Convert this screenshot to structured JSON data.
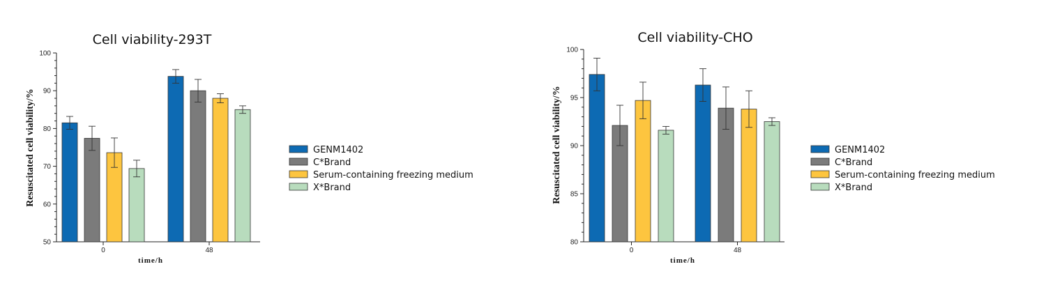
{
  "chart_data": [
    {
      "type": "bar",
      "title": "Cell viability-293T",
      "xlabel": "time/h",
      "ylabel": "Resuscitated cell viability/%",
      "categories": [
        "0",
        "48"
      ],
      "ylim": [
        50,
        100
      ],
      "yticks": [
        50,
        60,
        70,
        80,
        90,
        100
      ],
      "legend_position": "right",
      "series": [
        {
          "name": "GENM1402",
          "color": "#0d6ab3",
          "values": [
            81.5,
            93.8
          ],
          "errors": [
            1.7,
            1.8
          ]
        },
        {
          "name": "C*Brand",
          "color": "#7b7b7b",
          "values": [
            77.4,
            90.0
          ],
          "errors": [
            3.2,
            3.0
          ]
        },
        {
          "name": "Serum-containing freezing medium",
          "color": "#fdc53f",
          "values": [
            73.6,
            88.0
          ],
          "errors": [
            3.9,
            1.2
          ]
        },
        {
          "name": "X*Brand",
          "color": "#b8dcbd",
          "values": [
            69.4,
            85.0
          ],
          "errors": [
            2.2,
            1.0
          ]
        }
      ]
    },
    {
      "type": "bar",
      "title": "Cell viability-CHO",
      "xlabel": "time/h",
      "ylabel": "Resuscitated cell viability/%",
      "categories": [
        "0",
        "48"
      ],
      "ylim": [
        80,
        100
      ],
      "yticks": [
        80,
        85,
        90,
        95,
        100
      ],
      "legend_position": "right",
      "series": [
        {
          "name": "GENM1402",
          "color": "#0d6ab3",
          "values": [
            97.4,
            96.3
          ],
          "errors": [
            1.7,
            1.7
          ]
        },
        {
          "name": "C*Brand",
          "color": "#7b7b7b",
          "values": [
            92.1,
            93.9
          ],
          "errors": [
            2.1,
            2.2
          ]
        },
        {
          "name": "Serum-containing freezing medium",
          "color": "#fdc53f",
          "values": [
            94.7,
            93.8
          ],
          "errors": [
            1.9,
            1.9
          ]
        },
        {
          "name": "X*Brand",
          "color": "#b8dcbd",
          "values": [
            91.6,
            92.5
          ],
          "errors": [
            0.4,
            0.4
          ]
        }
      ]
    }
  ]
}
